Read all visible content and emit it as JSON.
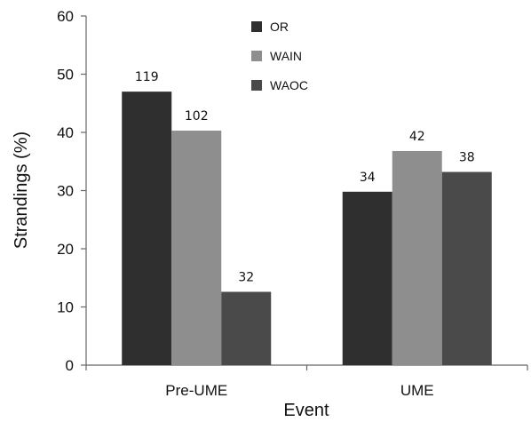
{
  "chart_data": {
    "type": "bar",
    "categories": [
      "Pre-UME",
      "UME"
    ],
    "series": [
      {
        "name": "OR",
        "values": [
          47,
          29.8
        ],
        "labels": [
          "119",
          "34"
        ],
        "color": "#2f2f2f"
      },
      {
        "name": "WAIN",
        "values": [
          40.3,
          36.8
        ],
        "labels": [
          "102",
          "42"
        ],
        "color": "#8e8e8e"
      },
      {
        "name": "WAOC",
        "values": [
          12.6,
          33.2
        ],
        "labels": [
          "32",
          "38"
        ],
        "color": "#4a4a4a"
      }
    ],
    "xlabel": "Event",
    "ylabel": "Strandings (%)",
    "ylim": [
      0,
      60
    ],
    "yticks": [
      "0",
      "10",
      "20",
      "30",
      "40",
      "50",
      "60"
    ],
    "grid": false,
    "legend": "top-center"
  }
}
